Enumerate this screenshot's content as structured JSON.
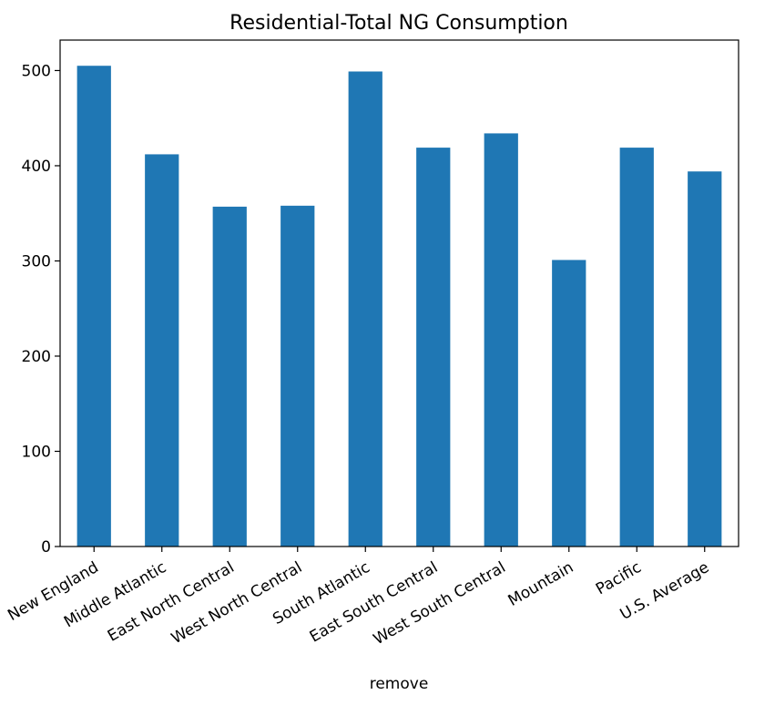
{
  "chart_data": {
    "type": "bar",
    "title": "Residential-Total NG Consumption",
    "xlabel": "remove",
    "ylabel": "",
    "categories": [
      "New England",
      "Middle Atlantic",
      "East North Central",
      "West North Central",
      "South Atlantic",
      "East South Central",
      "West South Central",
      "Mountain",
      "Pacific",
      "U.S. Average"
    ],
    "values": [
      505,
      412,
      357,
      358,
      499,
      419,
      434,
      301,
      419,
      394
    ],
    "ylim": [
      0,
      532
    ],
    "yticks": [
      0,
      100,
      200,
      300,
      400,
      500
    ],
    "bar_color": "#1f77b4",
    "grid": false,
    "legend": false
  }
}
